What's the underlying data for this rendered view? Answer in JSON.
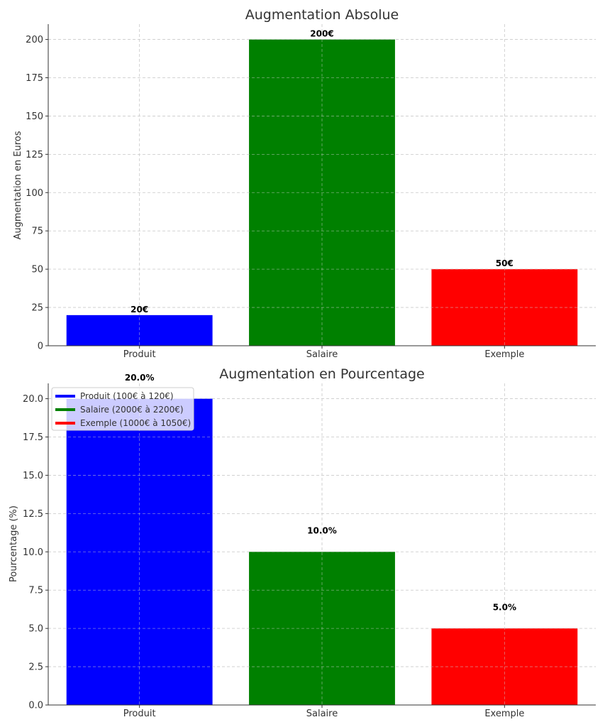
{
  "chart_data": [
    {
      "type": "bar",
      "title": "Augmentation Absolue",
      "xlabel": "",
      "ylabel": "Augmentation en Euros",
      "categories": [
        "Produit",
        "Salaire",
        "Exemple"
      ],
      "values": [
        20,
        200,
        50
      ],
      "value_labels": [
        "20€",
        "200€",
        "50€"
      ],
      "colors": [
        "#0000ff",
        "#008000",
        "#ff0000"
      ],
      "ylim": [
        0,
        210
      ],
      "yticks": [
        0,
        25,
        50,
        75,
        100,
        125,
        150,
        175,
        200
      ],
      "ytick_labels": [
        "0",
        "25",
        "50",
        "75",
        "100",
        "125",
        "150",
        "175",
        "200"
      ],
      "grid": true
    },
    {
      "type": "bar",
      "title": "Augmentation en Pourcentage",
      "xlabel": "",
      "ylabel": "Pourcentage (%)",
      "categories": [
        "Produit",
        "Salaire",
        "Exemple"
      ],
      "values": [
        20.0,
        10.0,
        5.0
      ],
      "value_labels": [
        "20.0%",
        "10.0%",
        "5.0%"
      ],
      "label_offset": 1,
      "colors": [
        "#0000ff",
        "#008000",
        "#ff0000"
      ],
      "ylim": [
        0,
        21
      ],
      "yticks": [
        0,
        2.5,
        5,
        7.5,
        10,
        12.5,
        15,
        17.5,
        20
      ],
      "ytick_labels": [
        "0.0",
        "2.5",
        "5.0",
        "7.5",
        "10.0",
        "12.5",
        "15.0",
        "17.5",
        "20.0"
      ],
      "grid": true,
      "legend": {
        "placement": "top-left",
        "entries": [
          "Produit (100€ à 120€)",
          "Salaire (2000€ à 2200€)",
          "Exemple (1000€ à 1050€)"
        ]
      }
    }
  ]
}
